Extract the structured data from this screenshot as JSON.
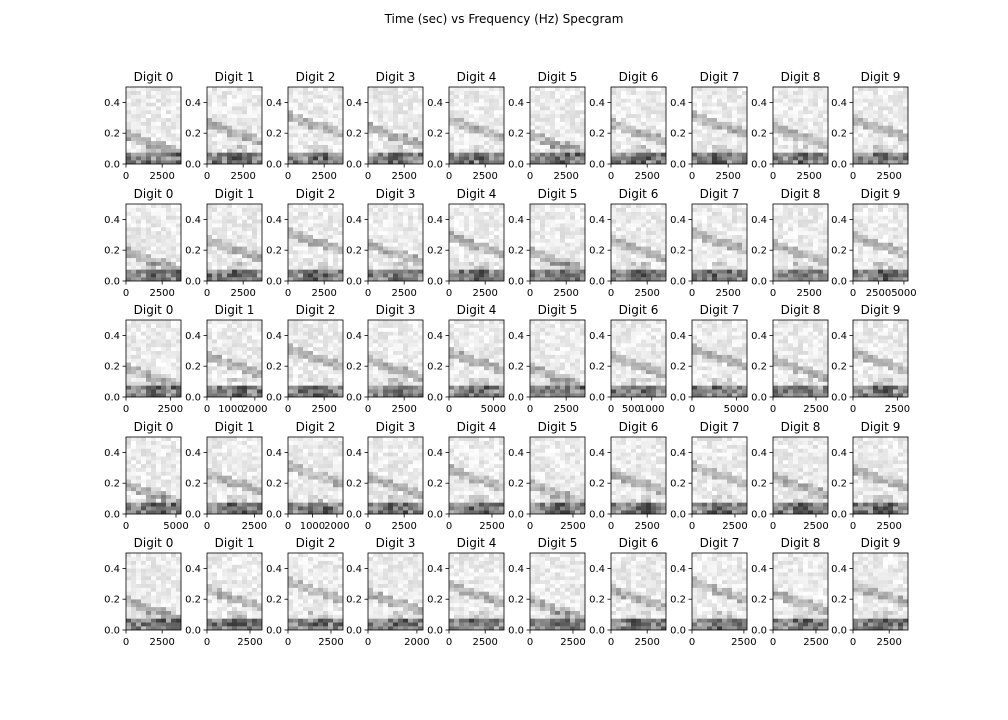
{
  "title": "Time (sec) vs Frequency (Hz) Specgram",
  "chart_data": {
    "type": "heatmap",
    "title": "Time (sec) vs Frequency (Hz) Specgram",
    "colormap": "Greys",
    "ylim": [
      0,
      0.5
    ],
    "yticks": [
      "0.0",
      "0.2",
      "0.4"
    ],
    "rows": [
      {
        "panels": [
          {
            "title": "Digit 0",
            "xmax": 3800,
            "xticks": [
              {
                "v": 0,
                "t": "0"
              },
              {
                "v": 2500,
                "t": "2500"
              }
            ]
          },
          {
            "title": "Digit 1",
            "xmax": 3800,
            "xticks": [
              {
                "v": 0,
                "t": "0"
              },
              {
                "v": 2500,
                "t": "2500"
              }
            ]
          },
          {
            "title": "Digit 2",
            "xmax": 3800,
            "xticks": [
              {
                "v": 0,
                "t": "0"
              },
              {
                "v": 2500,
                "t": "2500"
              }
            ]
          },
          {
            "title": "Digit 3",
            "xmax": 3800,
            "xticks": [
              {
                "v": 0,
                "t": "0"
              },
              {
                "v": 2500,
                "t": "2500"
              }
            ]
          },
          {
            "title": "Digit 4",
            "xmax": 3800,
            "xticks": [
              {
                "v": 0,
                "t": "0"
              },
              {
                "v": 2500,
                "t": "2500"
              }
            ]
          },
          {
            "title": "Digit 5",
            "xmax": 3800,
            "xticks": [
              {
                "v": 0,
                "t": "0"
              },
              {
                "v": 2500,
                "t": "2500"
              }
            ]
          },
          {
            "title": "Digit 6",
            "xmax": 3800,
            "xticks": [
              {
                "v": 0,
                "t": "0"
              },
              {
                "v": 2500,
                "t": "2500"
              }
            ]
          },
          {
            "title": "Digit 7",
            "xmax": 3800,
            "xticks": [
              {
                "v": 0,
                "t": "0"
              },
              {
                "v": 2500,
                "t": "2500"
              }
            ]
          },
          {
            "title": "Digit 8",
            "xmax": 3800,
            "xticks": [
              {
                "v": 0,
                "t": "0"
              },
              {
                "v": 2500,
                "t": "2500"
              }
            ]
          },
          {
            "title": "Digit 9",
            "xmax": 3800,
            "xticks": [
              {
                "v": 0,
                "t": "0"
              },
              {
                "v": 2500,
                "t": "2500"
              }
            ]
          }
        ]
      },
      {
        "panels": [
          {
            "title": "Digit 0",
            "xmax": 3800,
            "xticks": [
              {
                "v": 0,
                "t": "0"
              },
              {
                "v": 2500,
                "t": "2500"
              }
            ]
          },
          {
            "title": "Digit 1",
            "xmax": 3800,
            "xticks": [
              {
                "v": 0,
                "t": "0"
              },
              {
                "v": 2500,
                "t": "2500"
              }
            ]
          },
          {
            "title": "Digit 2",
            "xmax": 3800,
            "xticks": [
              {
                "v": 0,
                "t": "0"
              },
              {
                "v": 2500,
                "t": "2500"
              }
            ]
          },
          {
            "title": "Digit 3",
            "xmax": 3800,
            "xticks": [
              {
                "v": 0,
                "t": "0"
              },
              {
                "v": 2500,
                "t": "2500"
              }
            ]
          },
          {
            "title": "Digit 4",
            "xmax": 3800,
            "xticks": [
              {
                "v": 0,
                "t": "0"
              },
              {
                "v": 2500,
                "t": "2500"
              }
            ]
          },
          {
            "title": "Digit 5",
            "xmax": 3800,
            "xticks": [
              {
                "v": 0,
                "t": "0"
              },
              {
                "v": 2500,
                "t": "2500"
              }
            ]
          },
          {
            "title": "Digit 6",
            "xmax": 3800,
            "xticks": [
              {
                "v": 0,
                "t": "0"
              },
              {
                "v": 2500,
                "t": "2500"
              }
            ]
          },
          {
            "title": "Digit 7",
            "xmax": 3800,
            "xticks": [
              {
                "v": 0,
                "t": "0"
              },
              {
                "v": 2500,
                "t": "2500"
              }
            ]
          },
          {
            "title": "Digit 8",
            "xmax": 3800,
            "xticks": [
              {
                "v": 0,
                "t": "0"
              },
              {
                "v": 2500,
                "t": "2500"
              }
            ]
          },
          {
            "title": "Digit 9",
            "xmax": 5400,
            "xticks": [
              {
                "v": 0,
                "t": "0"
              },
              {
                "v": 2500,
                "t": "2500"
              },
              {
                "v": 5000,
                "t": "5000"
              }
            ]
          }
        ]
      },
      {
        "panels": [
          {
            "title": "Digit 0",
            "xmax": 3100,
            "xticks": [
              {
                "v": 0,
                "t": "0"
              },
              {
                "v": 2500,
                "t": "2500"
              }
            ]
          },
          {
            "title": "Digit 1",
            "xmax": 2300,
            "xticks": [
              {
                "v": 0,
                "t": "0"
              },
              {
                "v": 1000,
                "t": "1000"
              },
              {
                "v": 2000,
                "t": "2000"
              }
            ]
          },
          {
            "title": "Digit 2",
            "xmax": 3800,
            "xticks": [
              {
                "v": 0,
                "t": "0"
              },
              {
                "v": 2500,
                "t": "2500"
              }
            ]
          },
          {
            "title": "Digit 3",
            "xmax": 3800,
            "xticks": [
              {
                "v": 0,
                "t": "0"
              },
              {
                "v": 2500,
                "t": "2500"
              }
            ]
          },
          {
            "title": "Digit 4",
            "xmax": 6200,
            "xticks": [
              {
                "v": 0,
                "t": "0"
              },
              {
                "v": 5000,
                "t": "5000"
              }
            ]
          },
          {
            "title": "Digit 5",
            "xmax": 3800,
            "xticks": [
              {
                "v": 0,
                "t": "0"
              },
              {
                "v": 2500,
                "t": "2500"
              }
            ]
          },
          {
            "title": "Digit 6",
            "xmax": 1350,
            "xticks": [
              {
                "v": 0,
                "t": "0"
              },
              {
                "v": 500,
                "t": "500"
              },
              {
                "v": 1000,
                "t": "1000"
              }
            ]
          },
          {
            "title": "Digit 7",
            "xmax": 6200,
            "xticks": [
              {
                "v": 0,
                "t": "0"
              },
              {
                "v": 5000,
                "t": "5000"
              }
            ]
          },
          {
            "title": "Digit 8",
            "xmax": 3200,
            "xticks": [
              {
                "v": 0,
                "t": "0"
              },
              {
                "v": 2500,
                "t": "2500"
              }
            ]
          },
          {
            "title": "Digit 9",
            "xmax": 3100,
            "xticks": [
              {
                "v": 0,
                "t": "0"
              },
              {
                "v": 2500,
                "t": "2500"
              }
            ]
          }
        ]
      },
      {
        "panels": [
          {
            "title": "Digit 0",
            "xmax": 5500,
            "xticks": [
              {
                "v": 0,
                "t": "0"
              },
              {
                "v": 5000,
                "t": "5000"
              }
            ]
          },
          {
            "title": "Digit 1",
            "xmax": 2900,
            "xticks": [
              {
                "v": 0,
                "t": "0"
              },
              {
                "v": 2500,
                "t": "2500"
              }
            ]
          },
          {
            "title": "Digit 2",
            "xmax": 2250,
            "xticks": [
              {
                "v": 0,
                "t": "0"
              },
              {
                "v": 1000,
                "t": "1000"
              },
              {
                "v": 2000,
                "t": "2000"
              }
            ]
          },
          {
            "title": "Digit 3",
            "xmax": 3800,
            "xticks": [
              {
                "v": 0,
                "t": "0"
              },
              {
                "v": 2500,
                "t": "2500"
              }
            ]
          },
          {
            "title": "Digit 4",
            "xmax": 3200,
            "xticks": [
              {
                "v": 0,
                "t": "0"
              },
              {
                "v": 2500,
                "t": "2500"
              }
            ]
          },
          {
            "title": "Digit 5",
            "xmax": 3200,
            "xticks": [
              {
                "v": 0,
                "t": "0"
              },
              {
                "v": 2500,
                "t": "2500"
              }
            ]
          },
          {
            "title": "Digit 6",
            "xmax": 3800,
            "xticks": [
              {
                "v": 0,
                "t": "0"
              },
              {
                "v": 2500,
                "t": "2500"
              }
            ]
          },
          {
            "title": "Digit 7",
            "xmax": 3200,
            "xticks": [
              {
                "v": 0,
                "t": "0"
              },
              {
                "v": 2500,
                "t": "2500"
              }
            ]
          },
          {
            "title": "Digit 8",
            "xmax": 3200,
            "xticks": [
              {
                "v": 0,
                "t": "0"
              },
              {
                "v": 2500,
                "t": "2500"
              }
            ]
          },
          {
            "title": "Digit 9",
            "xmax": 3800,
            "xticks": [
              {
                "v": 0,
                "t": "0"
              },
              {
                "v": 2500,
                "t": "2500"
              }
            ]
          }
        ]
      },
      {
        "panels": [
          {
            "title": "Digit 0",
            "xmax": 3800,
            "xticks": [
              {
                "v": 0,
                "t": "0"
              },
              {
                "v": 2500,
                "t": "2500"
              }
            ]
          },
          {
            "title": "Digit 1",
            "xmax": 3200,
            "xticks": [
              {
                "v": 0,
                "t": "0"
              },
              {
                "v": 2500,
                "t": "2500"
              }
            ]
          },
          {
            "title": "Digit 2",
            "xmax": 3200,
            "xticks": [
              {
                "v": 0,
                "t": "0"
              },
              {
                "v": 2500,
                "t": "2500"
              }
            ]
          },
          {
            "title": "Digit 3",
            "xmax": 2250,
            "xticks": [
              {
                "v": 0,
                "t": "0"
              },
              {
                "v": 2000,
                "t": "2000"
              }
            ]
          },
          {
            "title": "Digit 4",
            "xmax": 3800,
            "xticks": [
              {
                "v": 0,
                "t": "0"
              },
              {
                "v": 2500,
                "t": "2500"
              }
            ]
          },
          {
            "title": "Digit 5",
            "xmax": 3200,
            "xticks": [
              {
                "v": 0,
                "t": "0"
              },
              {
                "v": 2500,
                "t": "2500"
              }
            ]
          },
          {
            "title": "Digit 6",
            "xmax": 3800,
            "xticks": [
              {
                "v": 0,
                "t": "0"
              },
              {
                "v": 2500,
                "t": "2500"
              }
            ]
          },
          {
            "title": "Digit 7",
            "xmax": 2650,
            "xticks": [
              {
                "v": 0,
                "t": "0"
              },
              {
                "v": 2500,
                "t": "2500"
              }
            ]
          },
          {
            "title": "Digit 8",
            "xmax": 3200,
            "xticks": [
              {
                "v": 0,
                "t": "0"
              },
              {
                "v": 2500,
                "t": "2500"
              }
            ]
          },
          {
            "title": "Digit 9",
            "xmax": 3800,
            "xticks": [
              {
                "v": 0,
                "t": "0"
              },
              {
                "v": 2500,
                "t": "2500"
              }
            ]
          }
        ]
      }
    ]
  }
}
